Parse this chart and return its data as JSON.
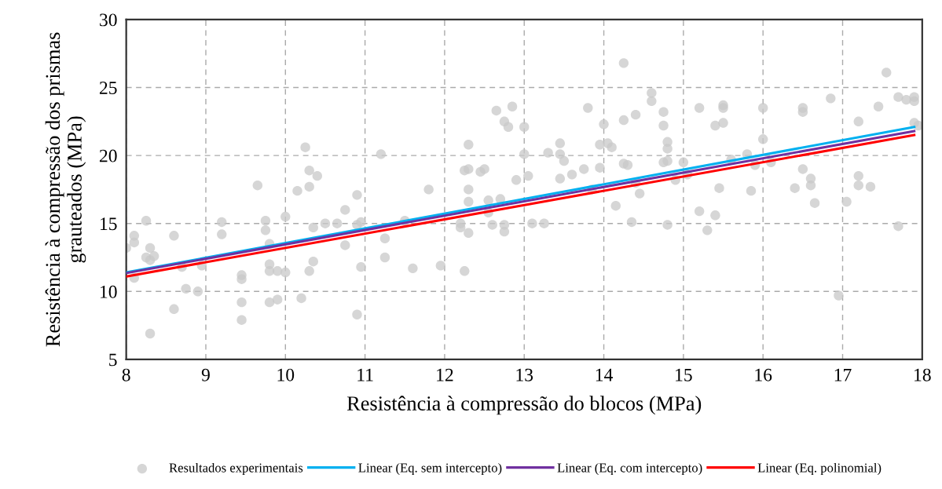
{
  "chart_data": {
    "type": "scatter",
    "xlabel": "Resistência à compressão do blocos (MPa)",
    "ylabel": "Resistência à compressão dos prismas grauteados (MPa)",
    "xlim": [
      8,
      18
    ],
    "xticks": [
      8,
      9,
      10,
      11,
      12,
      13,
      14,
      15,
      16,
      17,
      18
    ],
    "ylim": [
      5,
      30
    ],
    "yticks": [
      5,
      10,
      15,
      20,
      25,
      30
    ],
    "grid": true,
    "legend": "bottom",
    "series": [
      {
        "name": "Resultados experimentais",
        "color": "#c8c8c8",
        "marker": "circle",
        "x": [
          8.0,
          8.1,
          8.1,
          8.1,
          8.25,
          8.25,
          8.3,
          8.3,
          8.3,
          8.35,
          8.6,
          8.6,
          8.7,
          8.75,
          8.9,
          8.95,
          9.2,
          9.2,
          9.45,
          9.45,
          9.45,
          9.45,
          9.65,
          9.75,
          9.75,
          9.8,
          9.8,
          9.8,
          9.8,
          9.9,
          9.9,
          10.0,
          10.0,
          10.15,
          10.2,
          10.25,
          10.3,
          10.3,
          10.3,
          10.35,
          10.35,
          10.4,
          10.5,
          10.65,
          10.75,
          10.75,
          10.9,
          10.9,
          10.9,
          10.95,
          10.95,
          11.2,
          11.25,
          11.25,
          11.5,
          11.6,
          11.8,
          11.95,
          12.2,
          12.2,
          12.25,
          12.25,
          12.3,
          12.3,
          12.3,
          12.3,
          12.3,
          12.45,
          12.5,
          12.55,
          12.55,
          12.6,
          12.65,
          12.7,
          12.75,
          12.75,
          12.75,
          12.8,
          12.85,
          12.9,
          13.0,
          13.0,
          13.05,
          13.1,
          13.25,
          13.3,
          13.45,
          13.45,
          13.45,
          13.5,
          13.6,
          13.75,
          13.8,
          13.85,
          13.95,
          13.95,
          14.0,
          14.05,
          14.1,
          14.15,
          14.25,
          14.25,
          14.25,
          14.3,
          14.35,
          14.4,
          14.4,
          14.45,
          14.6,
          14.6,
          14.75,
          14.75,
          14.75,
          14.8,
          14.8,
          14.8,
          14.8,
          14.9,
          15.0,
          15.05,
          15.2,
          15.2,
          15.3,
          15.4,
          15.4,
          15.45,
          15.5,
          15.5,
          15.5,
          15.6,
          15.8,
          15.85,
          15.9,
          16.0,
          16.0,
          16.1,
          16.4,
          16.5,
          16.5,
          16.5,
          16.6,
          16.6,
          16.65,
          16.85,
          16.95,
          17.05,
          17.2,
          17.2,
          17.2,
          17.35,
          17.45,
          17.55,
          17.7,
          17.7,
          17.8,
          17.9,
          17.9,
          17.9,
          17.95
        ],
        "values": [
          13.2,
          14.1,
          13.6,
          11.0,
          15.2,
          12.5,
          13.2,
          12.3,
          6.9,
          12.6,
          14.1,
          8.7,
          11.8,
          10.2,
          10.0,
          11.9,
          15.1,
          14.2,
          11.2,
          10.9,
          9.2,
          7.9,
          17.8,
          15.2,
          14.5,
          13.5,
          12.0,
          11.5,
          9.2,
          11.5,
          9.4,
          15.5,
          11.4,
          17.4,
          9.5,
          20.6,
          18.9,
          17.7,
          11.5,
          14.7,
          12.2,
          18.5,
          15.0,
          15.0,
          16.0,
          13.4,
          17.1,
          14.9,
          8.3,
          15.1,
          11.8,
          20.1,
          13.9,
          12.5,
          15.2,
          11.7,
          17.5,
          11.9,
          15.0,
          14.7,
          18.9,
          11.5,
          20.8,
          19.0,
          17.5,
          16.6,
          14.3,
          18.8,
          19.0,
          16.7,
          15.8,
          14.9,
          23.3,
          16.8,
          22.5,
          14.9,
          14.4,
          22.1,
          23.6,
          18.2,
          22.1,
          20.1,
          18.5,
          15.0,
          15.0,
          20.2,
          20.9,
          20.1,
          18.3,
          19.6,
          18.6,
          19.0,
          23.5,
          17.5,
          19.1,
          20.8,
          22.3,
          20.9,
          20.6,
          16.3,
          26.8,
          22.6,
          19.4,
          19.3,
          15.1,
          23.0,
          18.0,
          17.2,
          24.6,
          24.0,
          23.2,
          22.2,
          19.5,
          21.0,
          20.5,
          19.6,
          14.9,
          18.2,
          19.5,
          18.6,
          23.5,
          15.9,
          14.5,
          22.2,
          15.6,
          17.6,
          23.7,
          23.5,
          22.4,
          19.7,
          20.1,
          17.4,
          19.3,
          21.2,
          23.5,
          19.5,
          17.6,
          23.5,
          23.2,
          19.0,
          18.3,
          17.8,
          16.5,
          24.2,
          9.7,
          16.6,
          22.5,
          18.5,
          17.8,
          17.7,
          23.6,
          26.1,
          24.3,
          14.8,
          24.1,
          24.3,
          22.4,
          24.0,
          22.2
        ]
      },
      {
        "name": "Linear (Eq. sem intercepto)",
        "type": "line",
        "color": "#00b0f0",
        "x": [
          8,
          17.9
        ],
        "values": [
          11.4,
          22.1
        ]
      },
      {
        "name": "Linear (Eq. com intercepto)",
        "type": "line",
        "color": "#7030a0",
        "x": [
          8,
          17.9
        ],
        "values": [
          11.35,
          21.8
        ]
      },
      {
        "name": "Linear (Eq. polinomial)",
        "type": "line",
        "color": "#ff0000",
        "x": [
          8,
          17.9
        ],
        "values": [
          11.1,
          21.5
        ]
      }
    ]
  }
}
